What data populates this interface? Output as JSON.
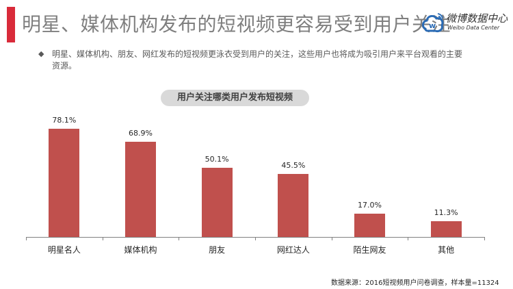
{
  "header": {
    "title": "明星、媒体机构发布的短视频更容易受到用户关注",
    "accent_color": "#d92b3a",
    "logo": {
      "cn": "微博数据中心",
      "en": "Weibo Data Center"
    }
  },
  "description": {
    "bullet": "◆",
    "text": "明星、媒体机构、朋友、网红发布的短视频更泳衣受到用户的关注，这些用户也将成为吸引用户来平台观看的主要资源。"
  },
  "chart_title": "用户关注哪类用户发布短视频",
  "chart_data": {
    "type": "bar",
    "title": "用户关注哪类用户发布短视频",
    "categories": [
      "明星名人",
      "媒体机构",
      "朋友",
      "网红达人",
      "陌生网友",
      "其他"
    ],
    "values": [
      78.1,
      68.9,
      50.1,
      45.5,
      17.0,
      11.3
    ],
    "labels": [
      "78.1%",
      "68.9%",
      "50.1%",
      "45.5%",
      "17.0%",
      "11.3%"
    ],
    "xlabel": "",
    "ylabel": "",
    "unit": "%",
    "bar_color": "#c0504d",
    "grid": false,
    "legend": "none"
  },
  "footer": {
    "source": "数据来源：2016短视频用户问卷调查，样本量=11324"
  }
}
